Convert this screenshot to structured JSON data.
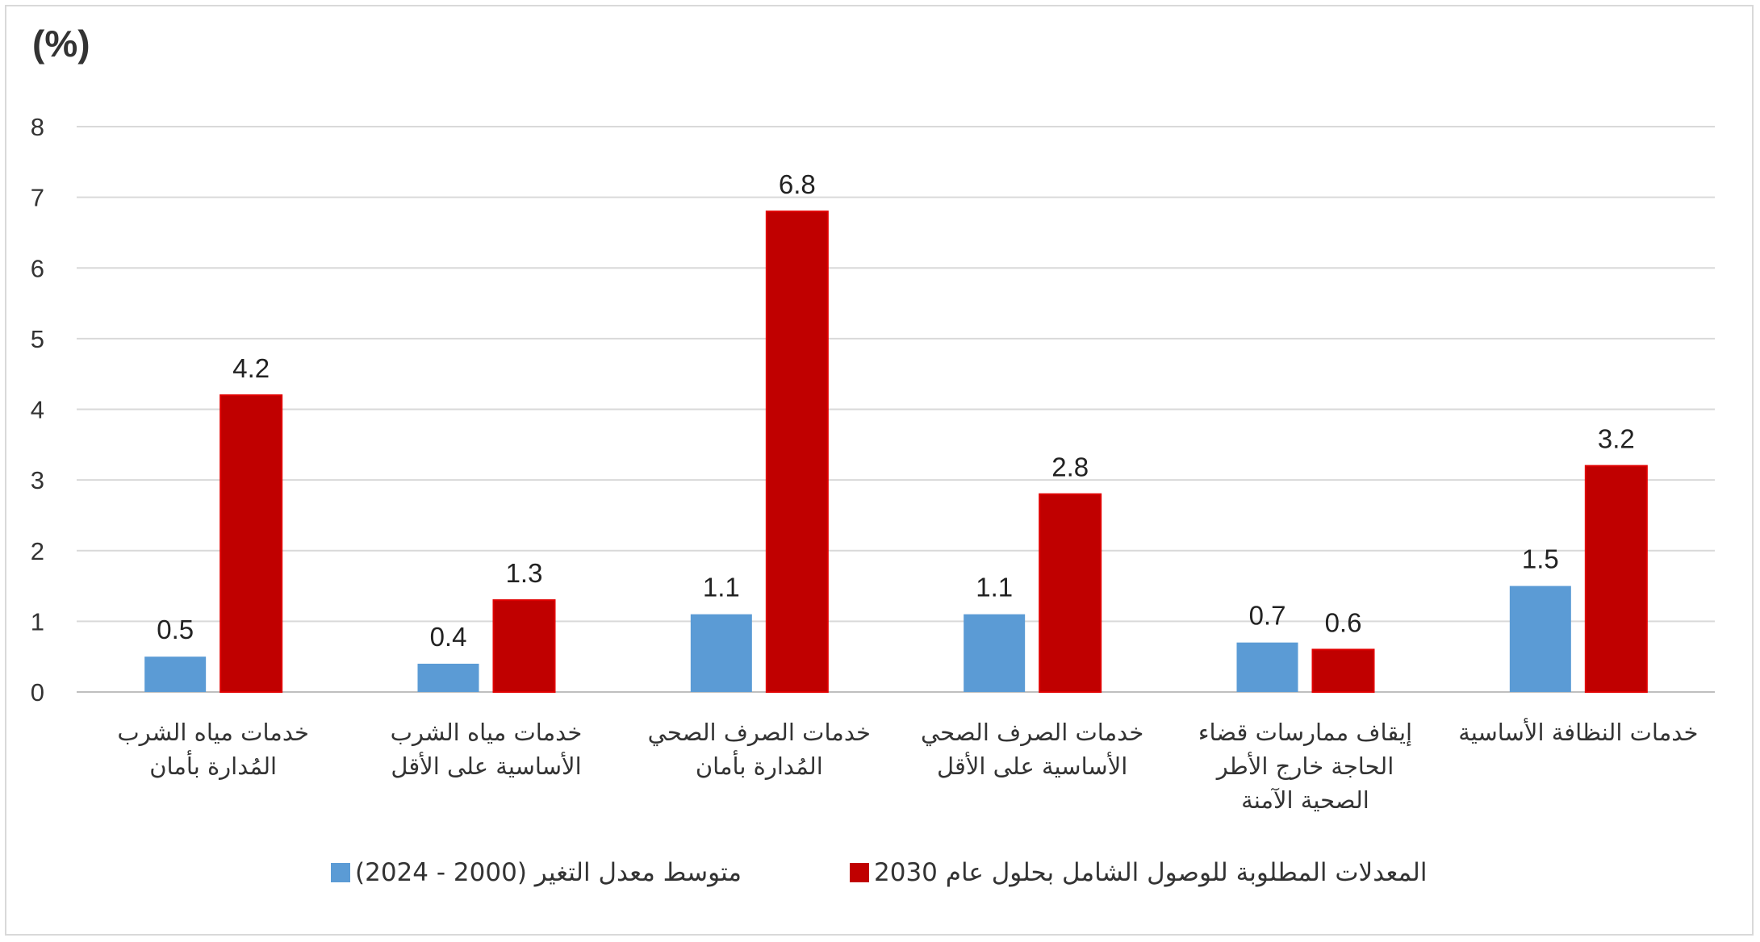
{
  "chart_data": {
    "type": "bar",
    "unit_label": "(%)",
    "ylim": [
      0,
      8
    ],
    "yticks": [
      0,
      1,
      2,
      3,
      4,
      5,
      6,
      7,
      8
    ],
    "grid": true,
    "legend_position": "bottom",
    "categories": [
      [
        "خدمات مياه الشرب",
        "المُدارة بأمان"
      ],
      [
        "خدمات مياه الشرب",
        "الأساسية على الأقل"
      ],
      [
        "خدمات الصرف الصحي",
        "المُدارة بأمان"
      ],
      [
        "خدمات الصرف الصحي",
        "الأساسية على الأقل"
      ],
      [
        "إيقاف ممارسات قضاء",
        "الحاجة خارج الأطر",
        "الصحية الآمنة"
      ],
      [
        "خدمات النظافة الأساسية"
      ]
    ],
    "series": [
      {
        "name": "متوسط معدل التغير  (2000 - 2024)",
        "color": "#5b9bd5",
        "values": [
          0.5,
          0.4,
          1.1,
          1.1,
          0.7,
          1.5
        ],
        "labels": [
          "0.5",
          "0.4",
          "1.1",
          "1.1",
          "0.7",
          "1.5"
        ]
      },
      {
        "name": "المعدلات المطلوبة للوصول الشامل بحلول عام 2030",
        "color": "#c00000",
        "values": [
          4.2,
          1.3,
          6.8,
          2.8,
          0.6,
          3.2
        ],
        "labels": [
          "4.2",
          "1.3",
          "6.8",
          "2.8",
          "0.6",
          "3.2"
        ]
      }
    ]
  }
}
